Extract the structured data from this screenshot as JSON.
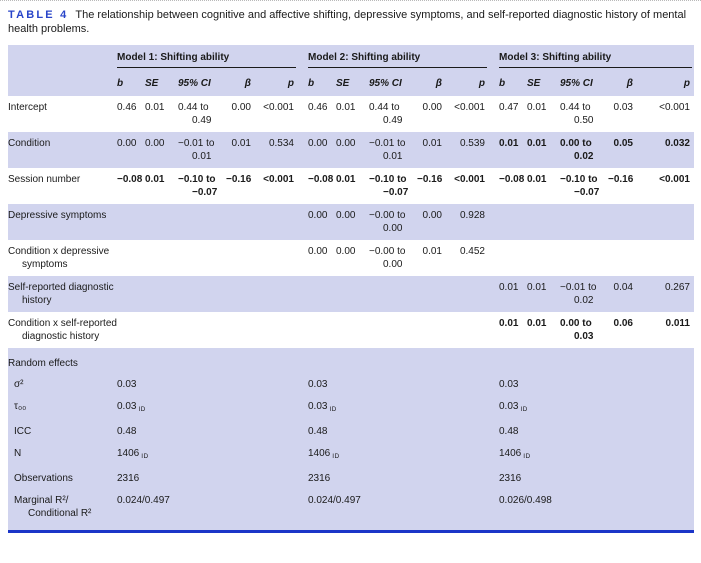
{
  "page": {
    "title_label": "TABLE 4",
    "title_text": "The relationship between cognitive and affective shifting, depressive symptoms, and self-reported diagnostic history of mental health problems."
  },
  "colors": {
    "accent_blue": "#2945c9",
    "band_lavender": "#d1d4ee",
    "bottom_border_blue": "#1b35c8"
  },
  "table": {
    "model_headers": [
      "Model 1: Shifting ability",
      "Model 2: Shifting ability",
      "Model 3: Shifting ability"
    ],
    "column_headers": [
      "b",
      "SE",
      "95% CI",
      "β",
      "p"
    ],
    "fixed_rows": [
      {
        "label": "Intercept",
        "shaded": false,
        "bold": [
          false,
          false,
          false
        ],
        "cells": [
          [
            "0.46",
            "0.01",
            "0.44 to 0.49",
            "0.00",
            "<0.001"
          ],
          [
            "0.46",
            "0.01",
            "0.44 to 0.49",
            "0.00",
            "<0.001"
          ],
          [
            "0.47",
            "0.01",
            "0.44 to 0.50",
            "0.03",
            "<0.001"
          ]
        ]
      },
      {
        "label": "Condition",
        "shaded": true,
        "bold": [
          false,
          false,
          true
        ],
        "cells": [
          [
            "0.00",
            "0.00",
            "−0.01 to 0.01",
            "0.01",
            "0.534"
          ],
          [
            "0.00",
            "0.00",
            "−0.01 to 0.01",
            "0.01",
            "0.539"
          ],
          [
            "0.01",
            "0.01",
            "0.00 to 0.02",
            "0.05",
            "0.032"
          ]
        ]
      },
      {
        "label": "Session number",
        "shaded": false,
        "bold": [
          true,
          true,
          true
        ],
        "cells": [
          [
            "−0.08",
            "0.01",
            "−0.10 to −0.07",
            "−0.16",
            "<0.001"
          ],
          [
            "−0.08",
            "0.01",
            "−0.10 to −0.07",
            "−0.16",
            "<0.001"
          ],
          [
            "−0.08",
            "0.01",
            "−0.10 to −0.07",
            "−0.16",
            "<0.001"
          ]
        ]
      },
      {
        "label": "Depressive symptoms",
        "shaded": true,
        "bold": [
          false,
          false,
          false
        ],
        "cells": [
          null,
          [
            "0.00",
            "0.00",
            "−0.00 to 0.00",
            "0.00",
            "0.928"
          ],
          null
        ]
      },
      {
        "label": "Condition x depressive symptoms",
        "shaded": false,
        "bold": [
          false,
          false,
          false
        ],
        "cells": [
          null,
          [
            "0.00",
            "0.00",
            "−0.00 to 0.00",
            "0.01",
            "0.452"
          ],
          null
        ]
      },
      {
        "label": "Self-reported diagnostic history",
        "shaded": true,
        "bold": [
          false,
          false,
          false
        ],
        "cells": [
          null,
          null,
          [
            "0.01",
            "0.01",
            "−0.01 to 0.02",
            "0.04",
            "0.267"
          ]
        ]
      },
      {
        "label": "Condition x self-reported diagnostic history",
        "shaded": false,
        "bold": [
          false,
          false,
          true
        ],
        "cells": [
          null,
          null,
          [
            "0.01",
            "0.01",
            "0.00 to 0.03",
            "0.06",
            "0.011"
          ]
        ]
      }
    ],
    "random_effects": {
      "header": "Random effects",
      "rows": [
        {
          "label": "σ²",
          "values": [
            {
              "v": "0.03"
            },
            {
              "v": "0.03"
            },
            {
              "v": "0.03"
            }
          ]
        },
        {
          "label": "τ₀₀",
          "values": [
            {
              "v": "0.03",
              "sub": "ID"
            },
            {
              "v": "0.03",
              "sub": "ID"
            },
            {
              "v": "0.03",
              "sub": "ID"
            }
          ]
        },
        {
          "label": "ICC",
          "values": [
            {
              "v": "0.48"
            },
            {
              "v": "0.48"
            },
            {
              "v": "0.48"
            }
          ]
        },
        {
          "label": "N",
          "values": [
            {
              "v": "1406",
              "sub": "ID"
            },
            {
              "v": "1406",
              "sub": "ID"
            },
            {
              "v": "1406",
              "sub": "ID"
            }
          ]
        },
        {
          "label": "Observations",
          "values": [
            {
              "v": "2316"
            },
            {
              "v": "2316"
            },
            {
              "v": "2316"
            }
          ]
        },
        {
          "label": "Marginal R²/ Conditional R²",
          "values": [
            {
              "v": "0.024/0.497"
            },
            {
              "v": "0.024/0.497"
            },
            {
              "v": "0.026/0.498"
            }
          ]
        }
      ]
    }
  }
}
